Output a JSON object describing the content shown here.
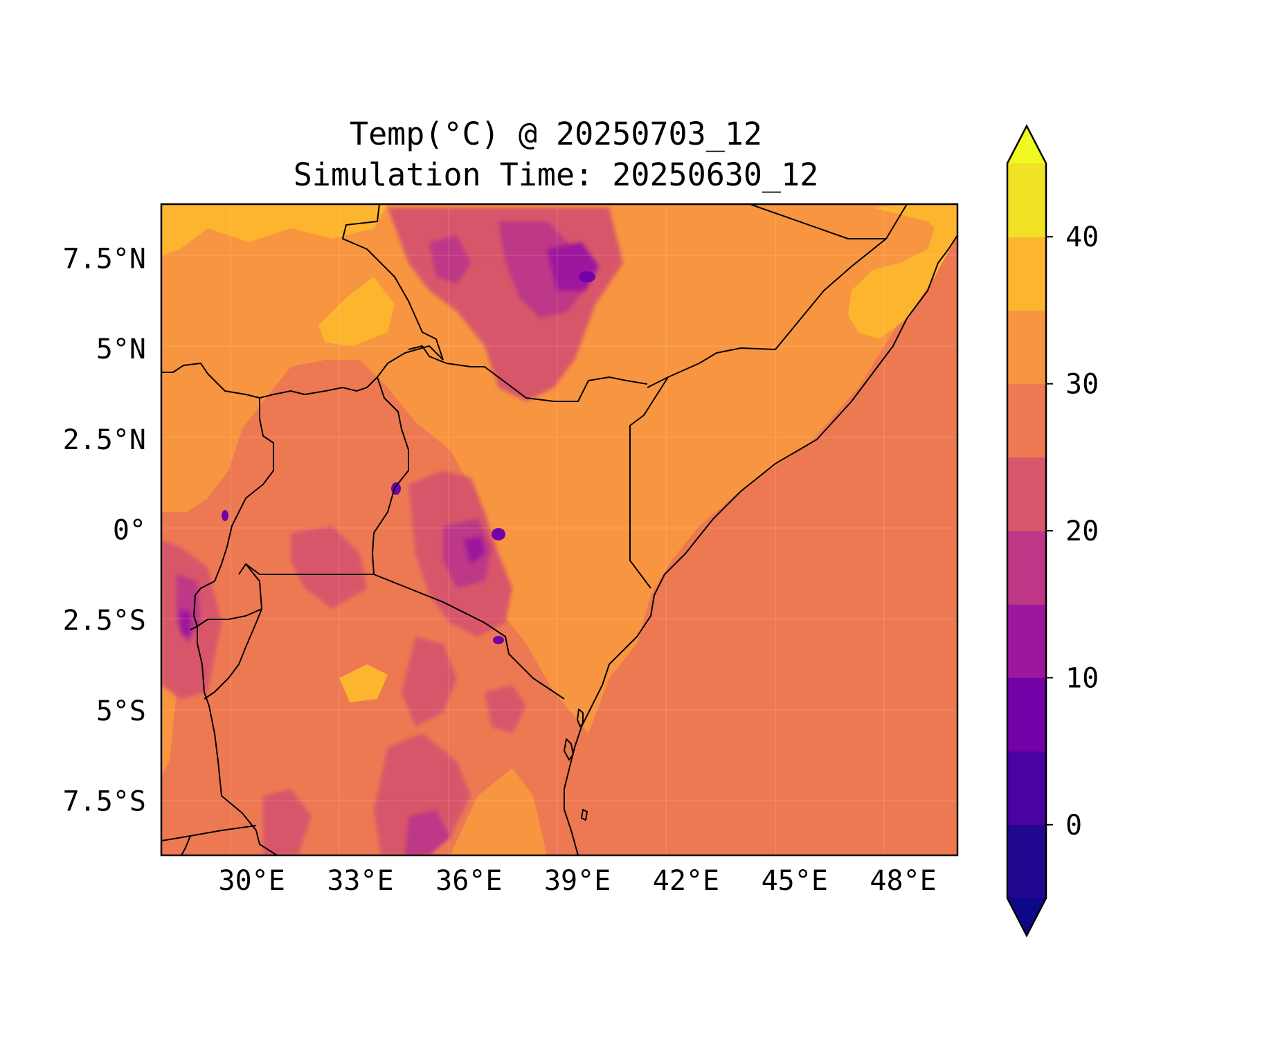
{
  "title_line1": "Temp(°C) @ 20250703_12",
  "title_line2": "Simulation Time: 20250630_12",
  "map": {
    "lon_range": [
      27.5,
      49.5
    ],
    "lat_range": [
      -9,
      9
    ],
    "x_tick_labels": [
      {
        "lon": 30,
        "label": "30°E"
      },
      {
        "lon": 33,
        "label": "33°E"
      },
      {
        "lon": 36,
        "label": "36°E"
      },
      {
        "lon": 39,
        "label": "39°E"
      },
      {
        "lon": 42,
        "label": "42°E"
      },
      {
        "lon": 45,
        "label": "45°E"
      },
      {
        "lon": 48,
        "label": "48°E"
      }
    ],
    "y_tick_labels": [
      {
        "lat": 7.5,
        "label": "7.5°N"
      },
      {
        "lat": 5,
        "label": "5°N"
      },
      {
        "lat": 2.5,
        "label": "2.5°N"
      },
      {
        "lat": 0,
        "label": "0°"
      },
      {
        "lat": -2.5,
        "label": "2.5°S"
      },
      {
        "lat": -5,
        "label": "5°S"
      },
      {
        "lat": -7.5,
        "label": "7.5°S"
      }
    ]
  },
  "colorbar": {
    "range": [
      -5,
      45
    ],
    "extend": "both",
    "colormap": "plasma",
    "bins": [
      {
        "from": -5,
        "to": 0,
        "color": "#220690"
      },
      {
        "from": 0,
        "to": 5,
        "color": "#4a02a0"
      },
      {
        "from": 5,
        "to": 10,
        "color": "#7201a8"
      },
      {
        "from": 10,
        "to": 15,
        "color": "#9c179e"
      },
      {
        "from": 15,
        "to": 20,
        "color": "#bd3786"
      },
      {
        "from": 20,
        "to": 25,
        "color": "#d8576b"
      },
      {
        "from": 25,
        "to": 30,
        "color": "#ed7953"
      },
      {
        "from": 30,
        "to": 35,
        "color": "#f89540"
      },
      {
        "from": 35,
        "to": 40,
        "color": "#fdb42f"
      },
      {
        "from": 40,
        "to": 45,
        "color": "#f2e226"
      }
    ],
    "under_color": "#0d0887",
    "over_color": "#f0f921",
    "tick_labels": [
      {
        "value": 0,
        "label": "0"
      },
      {
        "value": 10,
        "label": "10"
      },
      {
        "value": 20,
        "label": "20"
      },
      {
        "value": 30,
        "label": "30"
      },
      {
        "value": 40,
        "label": "40"
      }
    ]
  }
}
